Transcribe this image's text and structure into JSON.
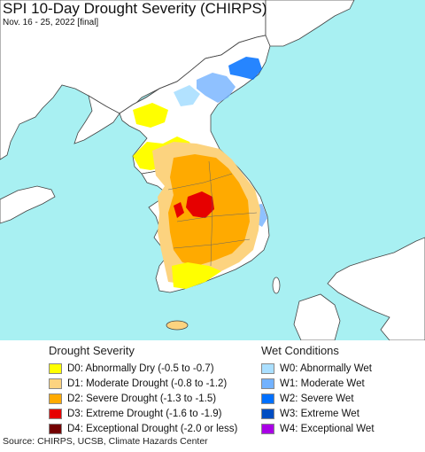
{
  "header": {
    "title": "SPI 10-Day Drought Severity (CHIRPS)",
    "subtitle": "Nov. 16 - 25, 2022 [final]"
  },
  "map": {
    "sea_color": "#a8f0f2",
    "land_color": "#ffffff",
    "border_color": "#444444"
  },
  "drought_legend": {
    "title": "Drought Severity",
    "items": [
      {
        "label": "D0: Abnormally Dry (-0.5 to -0.7)",
        "color": "#ffff00"
      },
      {
        "label": "D1: Moderate Drought (-0.8 to -1.2)",
        "color": "#fcd37f"
      },
      {
        "label": "D2: Severe Drought (-1.3 to -1.5)",
        "color": "#ffaa00"
      },
      {
        "label": "D3: Extreme Drought (-1.6 to -1.9)",
        "color": "#e60000"
      },
      {
        "label": "D4: Exceptional Drought (-2.0 or less)",
        "color": "#730000"
      }
    ]
  },
  "wet_legend": {
    "title": "Wet Conditions",
    "items": [
      {
        "label": "W0: Abnormally Wet",
        "color": "#aadfff"
      },
      {
        "label": "W1: Moderate Wet",
        "color": "#73b2ff"
      },
      {
        "label": "W2: Severe Wet",
        "color": "#0070ff"
      },
      {
        "label": "W3: Extreme Wet",
        "color": "#004dc2"
      },
      {
        "label": "W4: Exceptional Wet",
        "color": "#a900e6"
      }
    ]
  },
  "footer": {
    "source": "Source: CHIRPS, UCSB, Climate Hazards Center"
  }
}
